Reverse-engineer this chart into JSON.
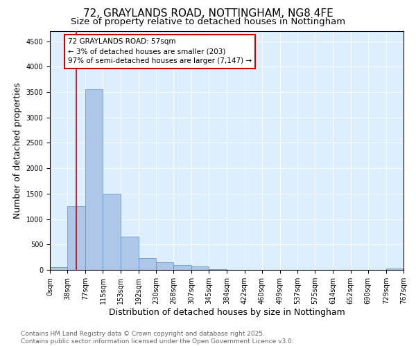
{
  "title": "72, GRAYLANDS ROAD, NOTTINGHAM, NG8 4FE",
  "subtitle": "Size of property relative to detached houses in Nottingham",
  "xlabel": "Distribution of detached houses by size in Nottingham",
  "ylabel": "Number of detached properties",
  "bar_values": [
    50,
    1250,
    3550,
    1500,
    650,
    230,
    150,
    100,
    70,
    10,
    5,
    2,
    1,
    0,
    0,
    0,
    0,
    0,
    0,
    30
  ],
  "bin_edges": [
    0,
    38,
    77,
    115,
    153,
    192,
    230,
    268,
    307,
    345,
    384,
    422,
    460,
    499,
    537,
    575,
    614,
    652,
    690,
    729,
    767
  ],
  "tick_labels": [
    "0sqm",
    "38sqm",
    "77sqm",
    "115sqm",
    "153sqm",
    "192sqm",
    "230sqm",
    "268sqm",
    "307sqm",
    "345sqm",
    "384sqm",
    "422sqm",
    "460sqm",
    "499sqm",
    "537sqm",
    "575sqm",
    "614sqm",
    "652sqm",
    "690sqm",
    "729sqm",
    "767sqm"
  ],
  "bar_color": "#aec6e8",
  "bar_edge_color": "#5a8fc2",
  "background_color": "#ddeeff",
  "property_size": 57,
  "vline_color": "#cc0000",
  "annotation_line1": "72 GRAYLANDS ROAD: 57sqm",
  "annotation_line2": "← 3% of detached houses are smaller (203)",
  "annotation_line3": "97% of semi-detached houses are larger (7,147) →",
  "annotation_box_color": "#cc0000",
  "ylim": [
    0,
    4700
  ],
  "yticks": [
    0,
    500,
    1000,
    1500,
    2000,
    2500,
    3000,
    3500,
    4000,
    4500
  ],
  "footer_line1": "Contains HM Land Registry data © Crown copyright and database right 2025.",
  "footer_line2": "Contains public sector information licensed under the Open Government Licence v3.0.",
  "title_fontsize": 11,
  "subtitle_fontsize": 9.5,
  "axis_label_fontsize": 9,
  "tick_fontsize": 7,
  "footer_fontsize": 6.5,
  "annotation_fontsize": 7.5
}
